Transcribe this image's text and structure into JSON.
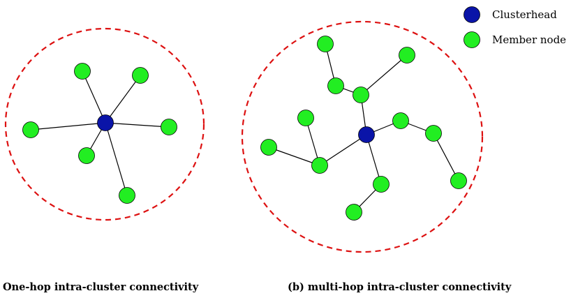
{
  "legend": {
    "clusterhead_label": "Clusterhead",
    "member_label": "Member node"
  },
  "captions": {
    "left": "One-hop intra-cluster connectivity",
    "right": "(b) multi-hop intra-cluster connectivity"
  },
  "colors": {
    "clusterhead_fill": "#0a14a8",
    "member_fill": "#22ee22",
    "boundary": "#dd1111",
    "edge": "#000000"
  }
}
